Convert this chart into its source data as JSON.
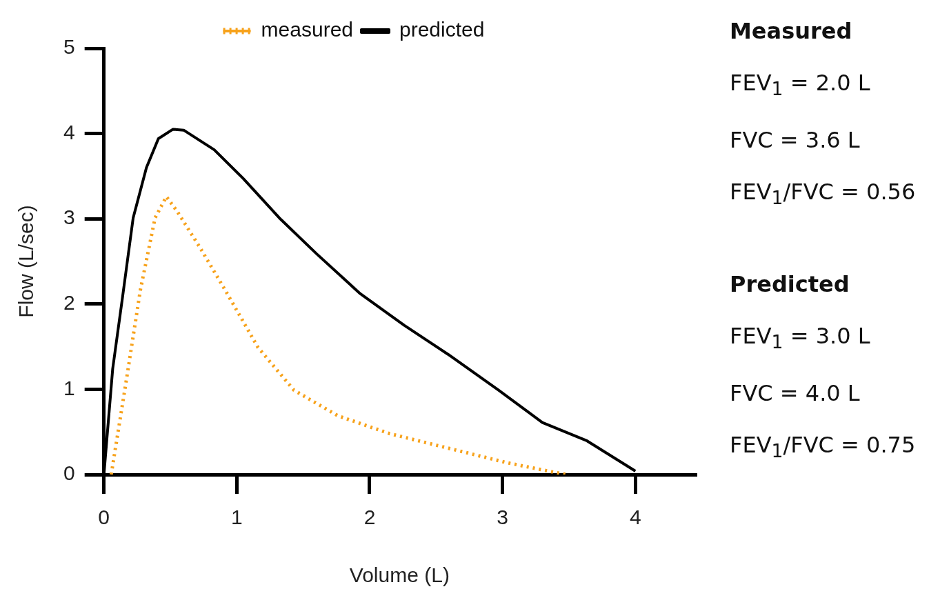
{
  "chart_data": {
    "type": "line",
    "xlabel": "Volume (L)",
    "ylabel": "Flow (L/sec)",
    "xlim": [
      0,
      4.45
    ],
    "ylim": [
      0,
      5
    ],
    "xticks": [
      0,
      1,
      2,
      3,
      4
    ],
    "yticks": [
      0,
      1,
      2,
      3,
      4,
      5
    ],
    "grid": false,
    "legend": "top",
    "marker": "none",
    "series": [
      {
        "name": "measured",
        "color": "#f7a21b",
        "line_style": "dotted",
        "x": [
          0.055,
          0.165,
          0.275,
          0.385,
          0.47,
          0.55,
          0.72,
          0.91,
          1.16,
          1.43,
          1.76,
          2.15,
          2.59,
          3.03,
          3.41,
          3.49
        ],
        "values": [
          0,
          1.07,
          2.17,
          3.01,
          3.26,
          3.09,
          2.67,
          2.17,
          1.49,
          0.99,
          0.69,
          0.48,
          0.31,
          0.14,
          0.02,
          0
        ]
      },
      {
        "name": "predicted",
        "color": "#000000",
        "line_style": "solid",
        "x": [
          0,
          0.066,
          0.14,
          0.22,
          0.32,
          0.41,
          0.52,
          0.6,
          0.83,
          1.05,
          1.32,
          1.6,
          1.93,
          2.26,
          2.59,
          2.97,
          3.3,
          3.63,
          4.0
        ],
        "values": [
          0,
          1.24,
          2.08,
          3.01,
          3.6,
          3.94,
          4.05,
          4.04,
          3.81,
          3.47,
          3.01,
          2.59,
          2.12,
          1.75,
          1.41,
          0.99,
          0.61,
          0.4,
          0.04
        ]
      }
    ],
    "annotations": [
      "Measured",
      "FEV$_{1}$ = 2.0 L",
      "FVC = 3.6 L",
      "FEV$_{1}$/FVC = 0.56",
      "Predicted",
      "FEV$_{1}$ = 3.0 L",
      "FVC = 4.0 L",
      "FEV$_{1}$/FVC = 0.75"
    ]
  }
}
